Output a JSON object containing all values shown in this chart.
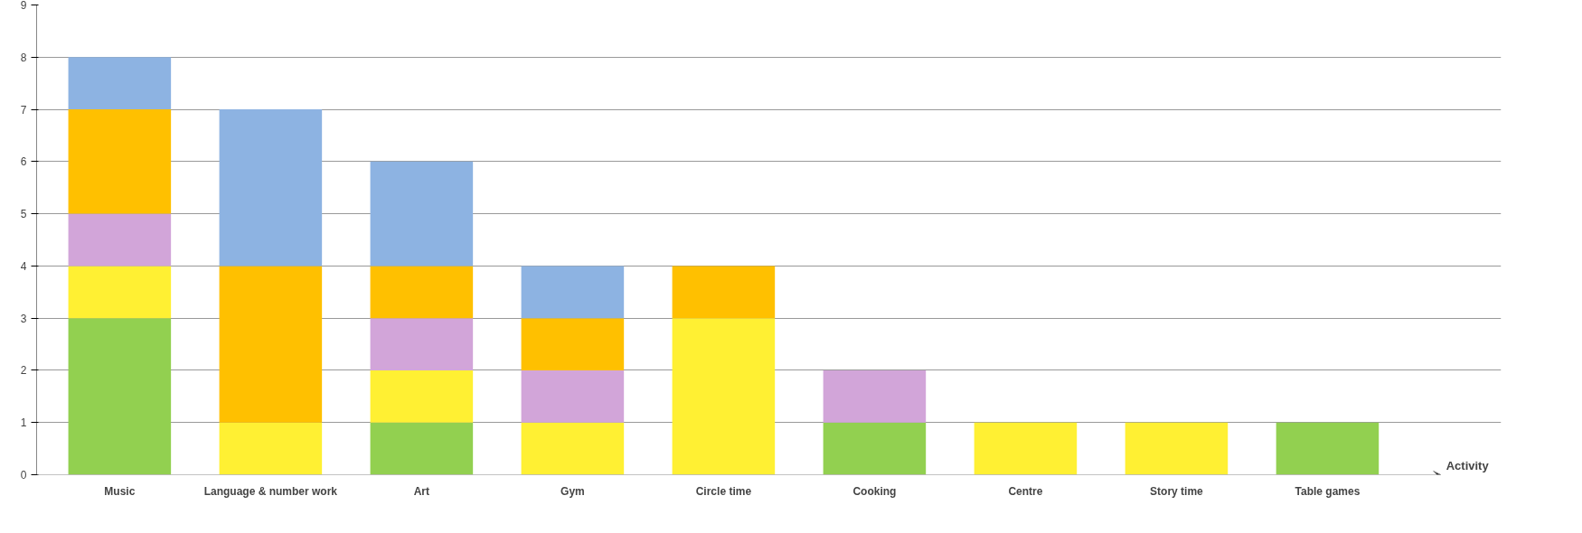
{
  "chart_data": {
    "type": "bar",
    "stacked": true,
    "xlabel": "Activity",
    "categories": [
      "Music",
      "Language & number work",
      "Art",
      "Gym",
      "Circle time",
      "Cooking",
      "Centre",
      "Story time",
      "Table games"
    ],
    "series": [
      {
        "color": "#92d050",
        "values": [
          3,
          null,
          1,
          null,
          null,
          1,
          null,
          null,
          1
        ]
      },
      {
        "color": "#fff033",
        "values": [
          1,
          1,
          1,
          1,
          3,
          null,
          1,
          1,
          null
        ]
      },
      {
        "color": "#d2a5d9",
        "values": [
          1,
          null,
          1,
          1,
          null,
          1,
          null,
          null,
          null
        ]
      },
      {
        "color": "#ffc000",
        "values": [
          2,
          3,
          1,
          1,
          1,
          null,
          null,
          null,
          null
        ]
      },
      {
        "color": "#8db3e2",
        "values": [
          1,
          3,
          2,
          1,
          null,
          null,
          null,
          null,
          null
        ]
      }
    ],
    "ylim": [
      0,
      9
    ],
    "yticks": [
      0,
      1,
      2,
      3,
      4,
      5,
      6,
      7,
      8,
      9
    ],
    "grid": "y"
  }
}
